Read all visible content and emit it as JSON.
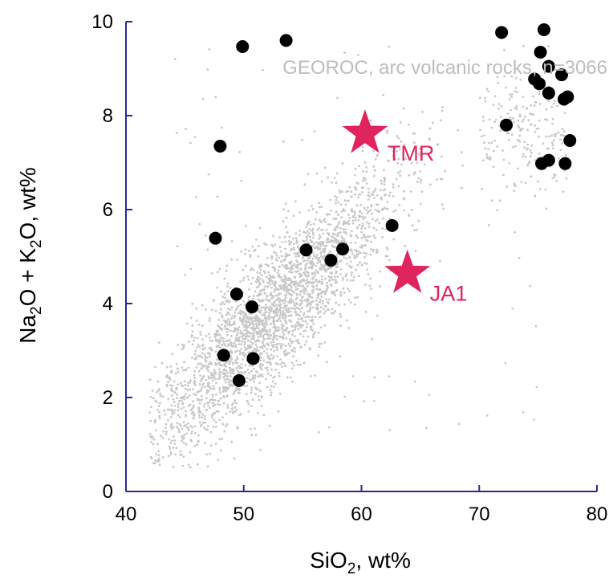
{
  "chart_data": {
    "type": "scatter",
    "xlim": [
      40,
      80
    ],
    "ylim": [
      0,
      10
    ],
    "xticks": [
      "40",
      "50",
      "60",
      "70",
      "80"
    ],
    "yticks": [
      "0",
      "2",
      "4",
      "6",
      "8",
      "10"
    ],
    "xlabel": {
      "base": "SiO",
      "sub": "2",
      "tail": ", wt%"
    },
    "ylabel": {
      "p1": "Na",
      "s1": "2",
      "p2": "O + K",
      "s2": "2",
      "p3": "O, wt%"
    },
    "annotation": "GEOROC, arc volcanic rocks, n=3066",
    "colors": {
      "axis": "#2b2a8c",
      "background_points": "#c8c8c8",
      "sample_points": "#000000",
      "stars": "#e0245e",
      "annotation": "#bdbdbd"
    },
    "series": [
      {
        "kind": "black-dots",
        "points": [
          [
            49.9,
            9.47
          ],
          [
            53.6,
            9.6
          ],
          [
            48.0,
            7.35
          ],
          [
            47.6,
            5.39
          ],
          [
            49.4,
            4.2
          ],
          [
            50.7,
            3.93
          ],
          [
            48.3,
            2.9
          ],
          [
            50.8,
            2.83
          ],
          [
            49.6,
            2.36
          ],
          [
            55.3,
            5.14
          ],
          [
            57.4,
            4.92
          ],
          [
            58.4,
            5.16
          ],
          [
            62.6,
            5.66
          ],
          [
            71.9,
            9.77
          ],
          [
            75.5,
            9.83
          ],
          [
            75.2,
            9.35
          ],
          [
            75.9,
            9.05
          ],
          [
            74.7,
            8.78
          ],
          [
            75.1,
            8.68
          ],
          [
            77.0,
            8.87
          ],
          [
            75.9,
            8.48
          ],
          [
            77.2,
            8.35
          ],
          [
            77.5,
            8.4
          ],
          [
            72.3,
            7.8
          ],
          [
            77.7,
            7.47
          ],
          [
            75.3,
            6.98
          ],
          [
            75.9,
            7.05
          ],
          [
            77.3,
            6.98
          ]
        ]
      },
      {
        "kind": "red-stars",
        "points": [
          {
            "label": "TMR",
            "x": 60.3,
            "y": 7.62
          },
          {
            "label": "JA1",
            "x": 63.9,
            "y": 4.64
          }
        ]
      }
    ],
    "background_cloud": {
      "n": 3066,
      "description_only": false
    }
  }
}
